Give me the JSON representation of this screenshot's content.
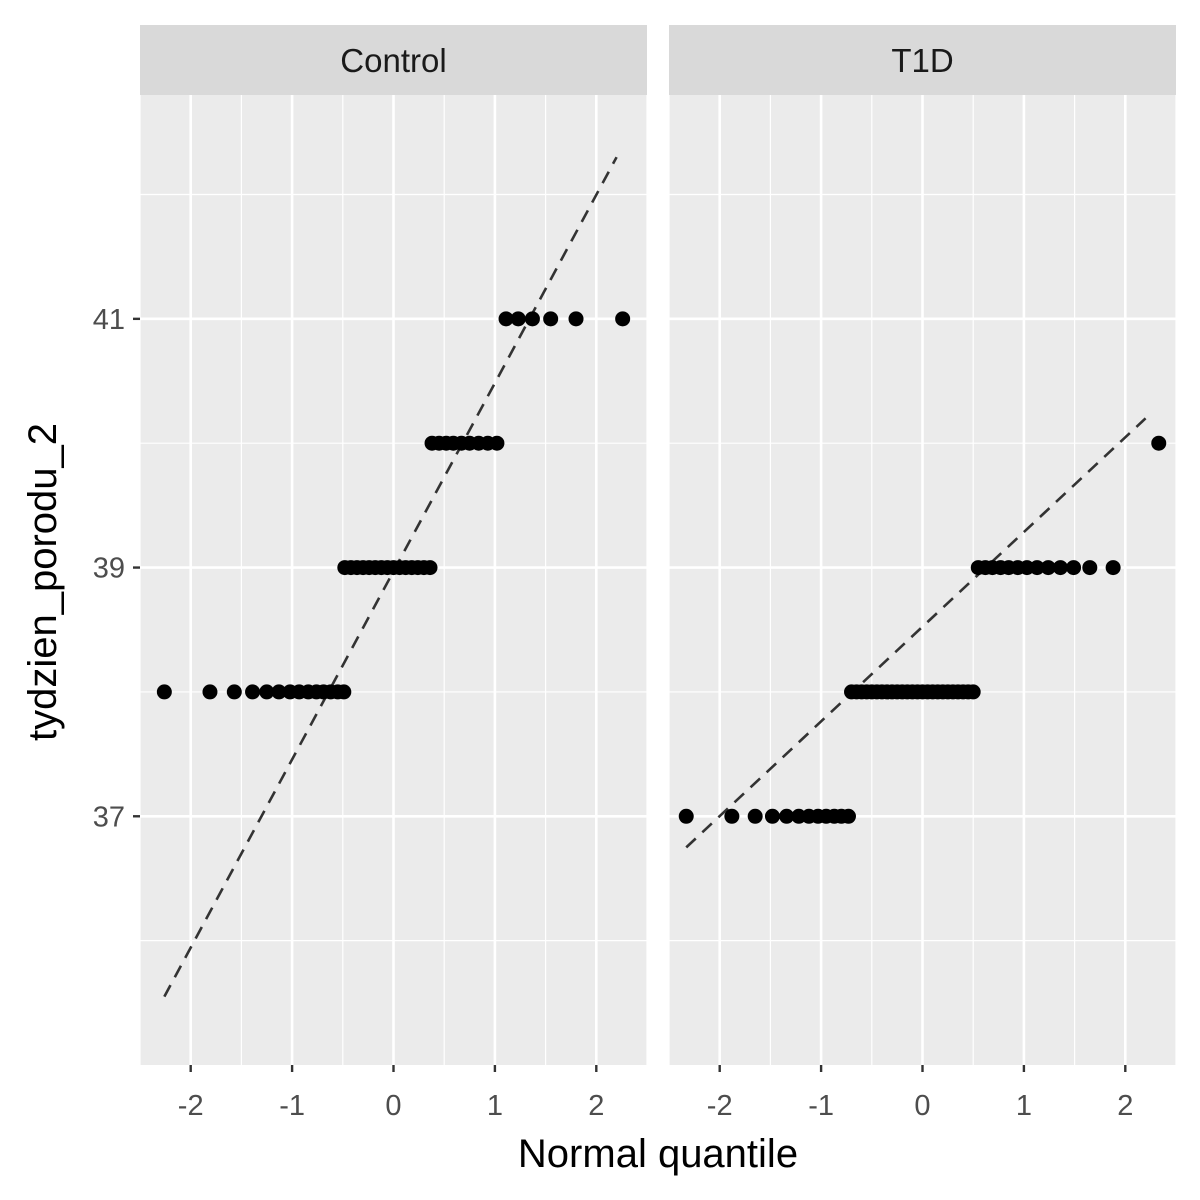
{
  "chart_data": {
    "type": "scatter",
    "xlabel": "Normal quantile",
    "ylabel": "tydzien_porodu_2",
    "xlim": [
      -2.5,
      2.5
    ],
    "ylim": [
      35.0,
      42.8
    ],
    "x_ticks": [
      -2,
      -1,
      0,
      1,
      2
    ],
    "x_tick_labels": [
      "-2",
      "-1",
      "0",
      "1",
      "2"
    ],
    "y_ticks": [
      37,
      39,
      41
    ],
    "y_tick_labels": [
      "37",
      "39",
      "41"
    ],
    "grid": true,
    "colors": {
      "panel_bg": "#ebebeb",
      "strip_bg": "#d9d9d9",
      "grid": "#ffffff",
      "point": "#000000",
      "ref_line": "#333333"
    },
    "panels": [
      {
        "strip_label": "Control",
        "points": [
          {
            "x": -2.26,
            "y": 38
          },
          {
            "x": -1.81,
            "y": 38
          },
          {
            "x": -1.57,
            "y": 38
          },
          {
            "x": -1.39,
            "y": 38
          },
          {
            "x": -1.25,
            "y": 38
          },
          {
            "x": -1.13,
            "y": 38
          },
          {
            "x": -1.02,
            "y": 38
          },
          {
            "x": -0.93,
            "y": 38
          },
          {
            "x": -0.84,
            "y": 38
          },
          {
            "x": -0.76,
            "y": 38
          },
          {
            "x": -0.69,
            "y": 38
          },
          {
            "x": -0.62,
            "y": 38
          },
          {
            "x": -0.55,
            "y": 38
          },
          {
            "x": -0.49,
            "y": 38
          },
          {
            "x": -0.48,
            "y": 39
          },
          {
            "x": -0.42,
            "y": 39
          },
          {
            "x": -0.36,
            "y": 39
          },
          {
            "x": -0.3,
            "y": 39
          },
          {
            "x": -0.24,
            "y": 39
          },
          {
            "x": -0.18,
            "y": 39
          },
          {
            "x": -0.12,
            "y": 39
          },
          {
            "x": -0.06,
            "y": 39
          },
          {
            "x": 0.0,
            "y": 39
          },
          {
            "x": 0.06,
            "y": 39
          },
          {
            "x": 0.12,
            "y": 39
          },
          {
            "x": 0.18,
            "y": 39
          },
          {
            "x": 0.24,
            "y": 39
          },
          {
            "x": 0.3,
            "y": 39
          },
          {
            "x": 0.36,
            "y": 39
          },
          {
            "x": 0.38,
            "y": 40
          },
          {
            "x": 0.45,
            "y": 40
          },
          {
            "x": 0.52,
            "y": 40
          },
          {
            "x": 0.59,
            "y": 40
          },
          {
            "x": 0.67,
            "y": 40
          },
          {
            "x": 0.75,
            "y": 40
          },
          {
            "x": 0.84,
            "y": 40
          },
          {
            "x": 0.93,
            "y": 40
          },
          {
            "x": 1.02,
            "y": 40
          },
          {
            "x": 1.11,
            "y": 41
          },
          {
            "x": 1.23,
            "y": 41
          },
          {
            "x": 1.37,
            "y": 41
          },
          {
            "x": 1.55,
            "y": 41
          },
          {
            "x": 1.8,
            "y": 41
          },
          {
            "x": 2.26,
            "y": 41
          }
        ],
        "reference_line": {
          "x": [
            -2.26,
            2.2
          ],
          "y": [
            35.55,
            42.3
          ]
        }
      },
      {
        "strip_label": "T1D",
        "points": [
          {
            "x": -2.33,
            "y": 37
          },
          {
            "x": -1.88,
            "y": 37
          },
          {
            "x": -1.65,
            "y": 37
          },
          {
            "x": -1.48,
            "y": 37
          },
          {
            "x": -1.34,
            "y": 37
          },
          {
            "x": -1.22,
            "y": 37
          },
          {
            "x": -1.12,
            "y": 37
          },
          {
            "x": -1.03,
            "y": 37
          },
          {
            "x": -0.95,
            "y": 37
          },
          {
            "x": -0.87,
            "y": 37
          },
          {
            "x": -0.8,
            "y": 37
          },
          {
            "x": -0.73,
            "y": 37
          },
          {
            "x": -0.7,
            "y": 38
          },
          {
            "x": -0.65,
            "y": 38
          },
          {
            "x": -0.6,
            "y": 38
          },
          {
            "x": -0.55,
            "y": 38
          },
          {
            "x": -0.5,
            "y": 38
          },
          {
            "x": -0.45,
            "y": 38
          },
          {
            "x": -0.4,
            "y": 38
          },
          {
            "x": -0.35,
            "y": 38
          },
          {
            "x": -0.3,
            "y": 38
          },
          {
            "x": -0.25,
            "y": 38
          },
          {
            "x": -0.2,
            "y": 38
          },
          {
            "x": -0.15,
            "y": 38
          },
          {
            "x": -0.1,
            "y": 38
          },
          {
            "x": -0.05,
            "y": 38
          },
          {
            "x": 0.0,
            "y": 38
          },
          {
            "x": 0.05,
            "y": 38
          },
          {
            "x": 0.1,
            "y": 38
          },
          {
            "x": 0.15,
            "y": 38
          },
          {
            "x": 0.2,
            "y": 38
          },
          {
            "x": 0.25,
            "y": 38
          },
          {
            "x": 0.3,
            "y": 38
          },
          {
            "x": 0.35,
            "y": 38
          },
          {
            "x": 0.4,
            "y": 38
          },
          {
            "x": 0.45,
            "y": 38
          },
          {
            "x": 0.5,
            "y": 38
          },
          {
            "x": 0.55,
            "y": 39
          },
          {
            "x": 0.62,
            "y": 39
          },
          {
            "x": 0.69,
            "y": 39
          },
          {
            "x": 0.77,
            "y": 39
          },
          {
            "x": 0.85,
            "y": 39
          },
          {
            "x": 0.94,
            "y": 39
          },
          {
            "x": 1.03,
            "y": 39
          },
          {
            "x": 1.13,
            "y": 39
          },
          {
            "x": 1.24,
            "y": 39
          },
          {
            "x": 1.36,
            "y": 39
          },
          {
            "x": 1.49,
            "y": 39
          },
          {
            "x": 1.65,
            "y": 39
          },
          {
            "x": 1.88,
            "y": 39
          },
          {
            "x": 2.33,
            "y": 40
          }
        ],
        "reference_line": {
          "x": [
            -2.33,
            2.2
          ],
          "y": [
            36.75,
            40.2
          ]
        }
      }
    ]
  }
}
